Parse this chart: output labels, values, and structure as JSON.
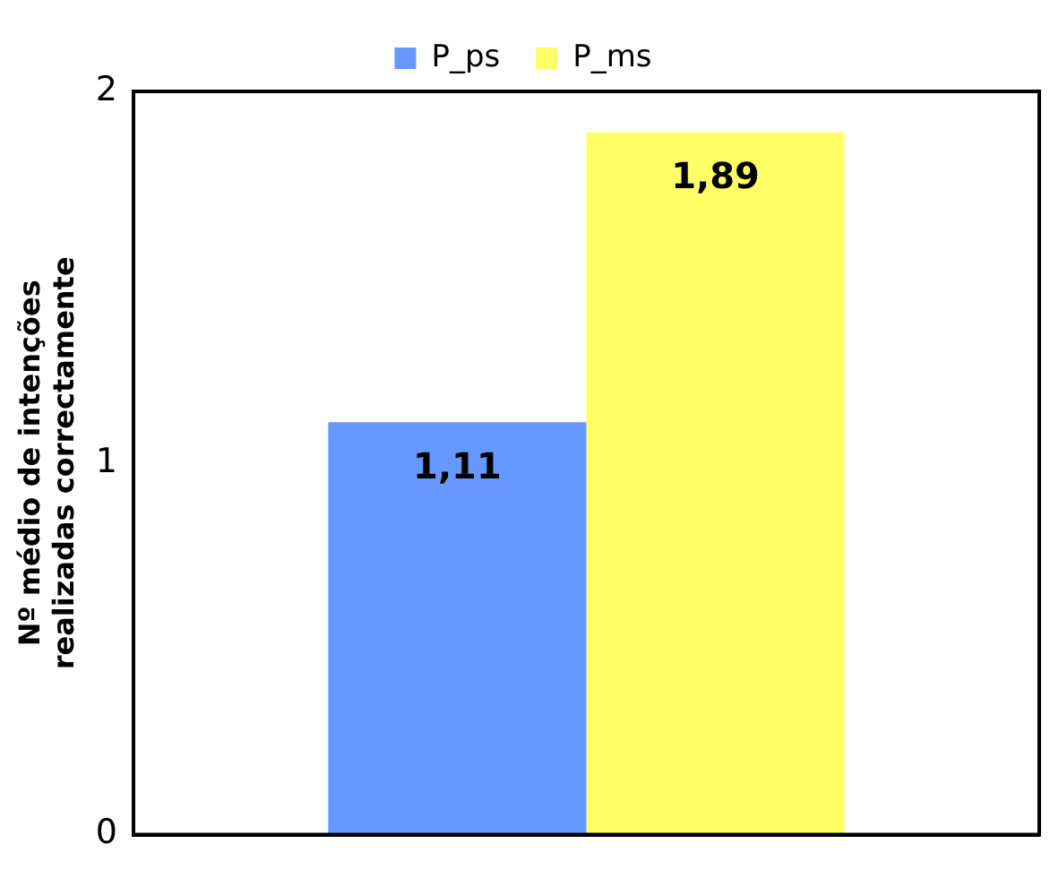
{
  "chart_data": {
    "type": "bar",
    "ylabel": "Nº médio de intenções realizadas correctamente",
    "categories": [
      null
    ],
    "series": [
      {
        "name": "P_ps",
        "color": "#6699ff",
        "values": [
          1.11
        ],
        "value_labels": [
          "1,11"
        ]
      },
      {
        "name": "P_ms",
        "color": "#ffff66",
        "values": [
          1.89
        ],
        "value_labels": [
          "1,89"
        ]
      }
    ],
    "ylim": [
      0,
      2
    ],
    "yticks": [
      0,
      1,
      2
    ],
    "grid": false,
    "legend": "top"
  }
}
